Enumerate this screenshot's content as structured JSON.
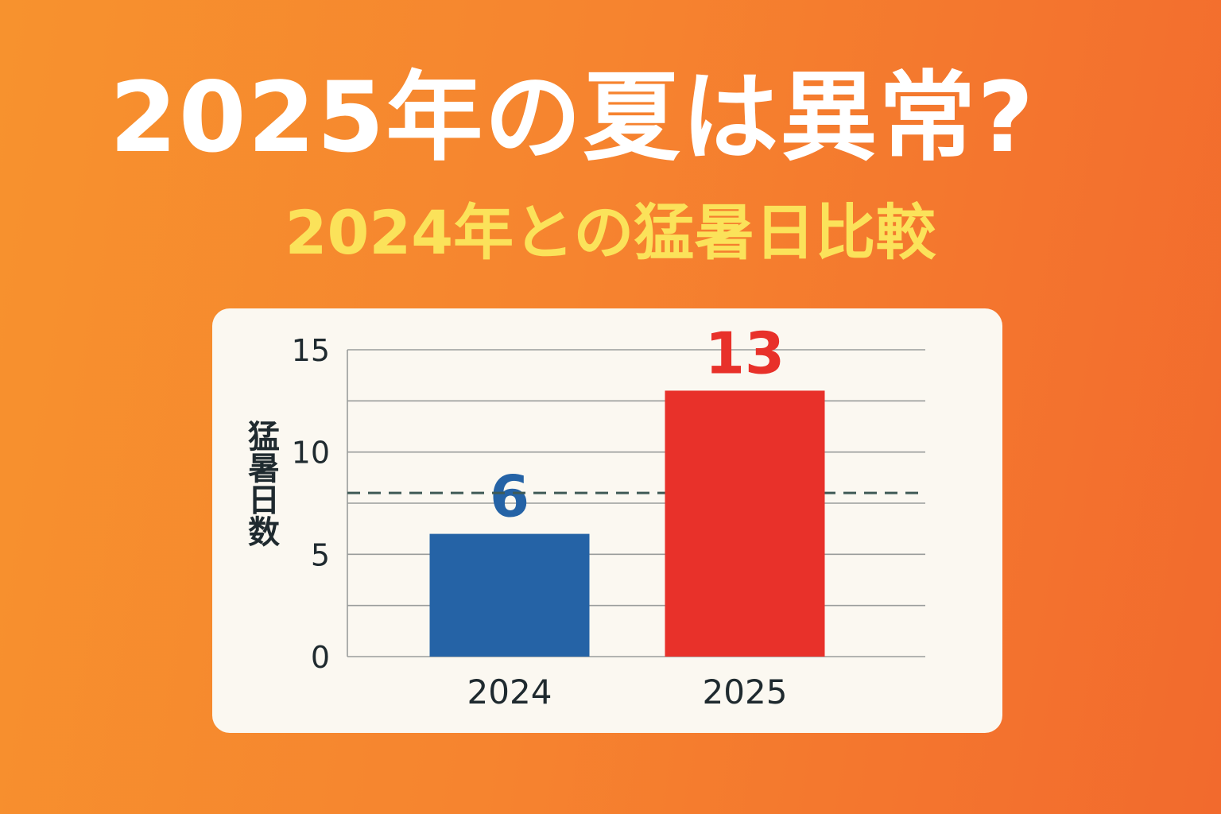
{
  "header": {
    "title": "2025年の夏は異常?",
    "subtitle": "2024年との猛暑日比較"
  },
  "colors": {
    "title": "#ffffff",
    "subtitle": "#fbe25a",
    "bar_2024": "#2563a6",
    "bar_2025": "#e8312a",
    "reference_line": "#3f5a56"
  },
  "chart_data": {
    "type": "bar",
    "title": "",
    "xlabel": "",
    "ylabel": "猛暑日数",
    "categories": [
      "2024",
      "2025"
    ],
    "values": [
      6,
      13
    ],
    "data_labels": [
      "6",
      "13"
    ],
    "ylim": [
      0,
      15
    ],
    "yticks": [
      0,
      5,
      10,
      15
    ],
    "ytick_labels": [
      "0",
      "5",
      "10",
      "15"
    ],
    "reference_line": {
      "value": 8,
      "style": "dashed"
    },
    "grid": true,
    "legend": "none"
  }
}
